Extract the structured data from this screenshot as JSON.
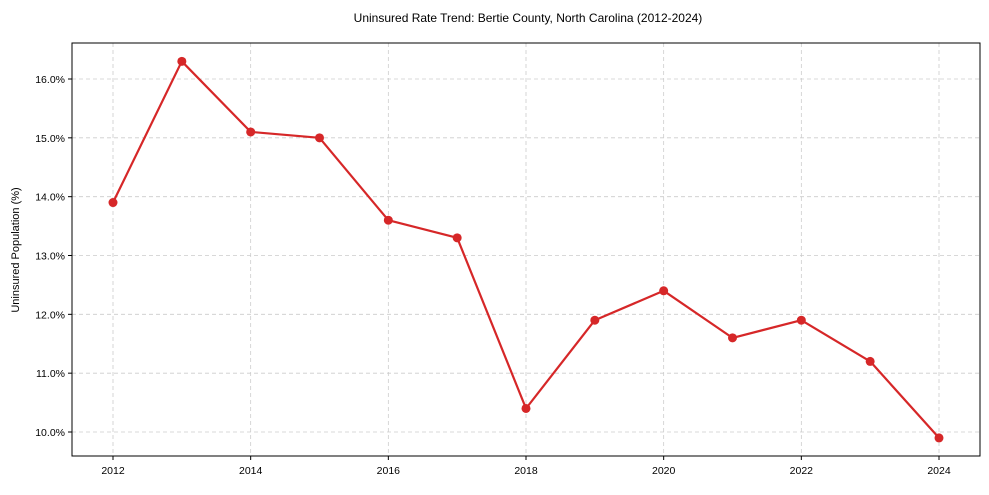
{
  "chart_data": {
    "type": "line",
    "title": "Uninsured Rate Trend: Bertie County, North Carolina (2012-2024)",
    "xlabel": "",
    "ylabel": "Uninsured Population (%)",
    "x": [
      2012,
      2013,
      2014,
      2015,
      2016,
      2017,
      2018,
      2019,
      2020,
      2021,
      2022,
      2023,
      2024
    ],
    "series": [
      {
        "name": "Uninsured Rate",
        "values": [
          13.9,
          16.3,
          15.1,
          15.0,
          13.6,
          13.3,
          10.4,
          11.9,
          12.4,
          11.6,
          11.9,
          11.2,
          9.9
        ],
        "color": "#d62728"
      }
    ],
    "xticks": [
      "2012",
      "2014",
      "2016",
      "2018",
      "2020",
      "2022",
      "2024"
    ],
    "yticks": [
      "10.0%",
      "11.0%",
      "12.0%",
      "13.0%",
      "14.0%",
      "15.0%",
      "16.0%"
    ],
    "ylim": [
      9.6,
      16.6
    ],
    "xlim": [
      2011.4,
      2024.6
    ],
    "grid": true,
    "legend": null
  }
}
